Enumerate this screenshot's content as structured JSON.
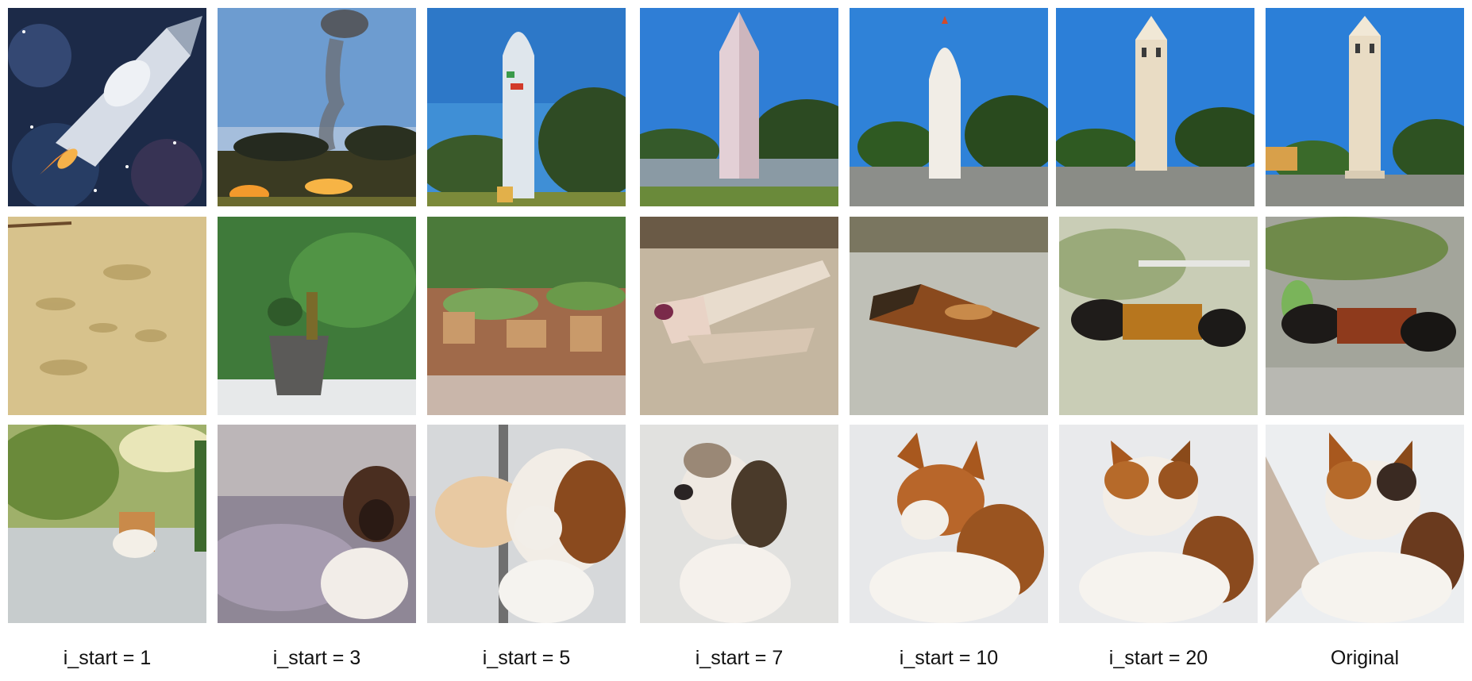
{
  "columns": [
    {
      "label": "i_start = 1"
    },
    {
      "label": "i_start = 3"
    },
    {
      "label": "i_start = 5"
    },
    {
      "label": "i_start = 7"
    },
    {
      "label": "i_start = 10"
    },
    {
      "label": "i_start = 20"
    },
    {
      "label": "Original"
    }
  ],
  "rows": [
    {
      "subject": "tower",
      "tiles": [
        "rocket-in-space",
        "smoke-over-field",
        "white-tower-blue-sky",
        "pink-obelisk",
        "white-rounded-tower",
        "beige-bell-tower",
        "bell-tower"
      ]
    },
    {
      "subject": "caterpillar",
      "tiles": [
        "sandy-ground",
        "potted-plant",
        "rocky-garden",
        "pencil-on-table",
        "rusty-block",
        "striped-caterpillar-blur",
        "woolly-caterpillar"
      ]
    },
    {
      "subject": "cat",
      "tiles": [
        "dog-on-road",
        "brown-dog",
        "beagle-closeup",
        "puppy-looking-up",
        "fox-like-dog",
        "calico-cat-smooth",
        "calico-cat"
      ]
    }
  ]
}
